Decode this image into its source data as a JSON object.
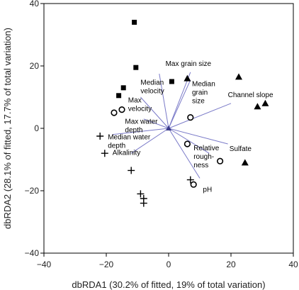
{
  "chart_data": {
    "type": "scatter",
    "xlabel": "dbRDA1 (30.2% of fitted, 19% of total variation)",
    "ylabel": "dbRDA2 (28.1% of fitted, 17.7% of total variation)",
    "xlim": [
      -40,
      40
    ],
    "ylim": [
      -40,
      40
    ],
    "x_ticks": [
      "−40",
      "−20",
      "0",
      "20",
      "40"
    ],
    "y_ticks": [
      "40",
      "20",
      "0",
      "−20",
      "−40"
    ],
    "grid": false,
    "series": [
      {
        "marker": "square",
        "points": [
          [
            -11,
            34
          ],
          [
            -10.5,
            19.5
          ],
          [
            -14.5,
            13
          ],
          [
            -16,
            10.5
          ],
          [
            1,
            15
          ]
        ]
      },
      {
        "marker": "triangle",
        "points": [
          [
            6,
            16
          ],
          [
            22.5,
            16.5
          ],
          [
            28.5,
            7
          ],
          [
            31,
            8
          ],
          [
            24.5,
            -11
          ]
        ]
      },
      {
        "marker": "circle",
        "points": [
          [
            -17.5,
            5
          ],
          [
            -15,
            6
          ],
          [
            7,
            3.5
          ],
          [
            6,
            -5
          ],
          [
            16.5,
            -10.5
          ],
          [
            8,
            -18
          ]
        ]
      },
      {
        "marker": "plus",
        "points": [
          [
            -22,
            -2.5
          ],
          [
            -20.5,
            -8
          ],
          [
            -12,
            -13.5
          ],
          [
            -9,
            -21
          ],
          [
            -8,
            -22.5
          ],
          [
            -8,
            -24
          ],
          [
            7,
            -16.5
          ]
        ]
      }
    ],
    "vectors": [
      {
        "label": "Max grain size",
        "end": [
          7,
          18
        ]
      },
      {
        "label": "Median velocity",
        "end": [
          -3,
          17.5
        ]
      },
      {
        "label": "Median grain size",
        "end": [
          7,
          15.5
        ]
      },
      {
        "label": "Channel slope",
        "end": [
          20,
          8
        ]
      },
      {
        "label": "Max velocity",
        "end": [
          -9,
          10
        ]
      },
      {
        "label": "Max water depth",
        "end": [
          -8,
          3
        ]
      },
      {
        "label": "Median water depth",
        "end": [
          -18,
          -2
        ]
      },
      {
        "label": "Alkalinity",
        "end": [
          -12,
          -8
        ]
      },
      {
        "label": "Relative roughness",
        "end": [
          13,
          -8
        ]
      },
      {
        "label": "Sulfate",
        "end": [
          19,
          -5
        ]
      },
      {
        "label": "pH",
        "end": [
          10,
          -16
        ]
      }
    ],
    "vector_labels": [
      {
        "lines": [
          "Max grain size"
        ],
        "at": [
          -1,
          20
        ]
      },
      {
        "lines": [
          "Median",
          "velocity"
        ],
        "at": [
          -9,
          14
        ]
      },
      {
        "lines": [
          "Median",
          "grain",
          "size"
        ],
        "at": [
          7.5,
          13.5
        ]
      },
      {
        "lines": [
          "Channel slope"
        ],
        "at": [
          19,
          10
        ]
      },
      {
        "lines": [
          "Max",
          "velocity"
        ],
        "at": [
          -13,
          8.3
        ]
      },
      {
        "lines": [
          "Max water",
          "depth"
        ],
        "at": [
          -14,
          1.5
        ]
      },
      {
        "lines": [
          "Median water",
          "depth"
        ],
        "at": [
          -19.5,
          -3.5
        ]
      },
      {
        "lines": [
          "Alkalinity"
        ],
        "at": [
          -18,
          -8.5
        ]
      },
      {
        "lines": [
          "Relative",
          "rough-",
          "ness"
        ],
        "at": [
          8,
          -7
        ]
      },
      {
        "lines": [
          "Sulfate"
        ],
        "at": [
          19.5,
          -7.3
        ]
      },
      {
        "lines": [
          "pH"
        ],
        "at": [
          11,
          -20.3
        ]
      }
    ]
  }
}
